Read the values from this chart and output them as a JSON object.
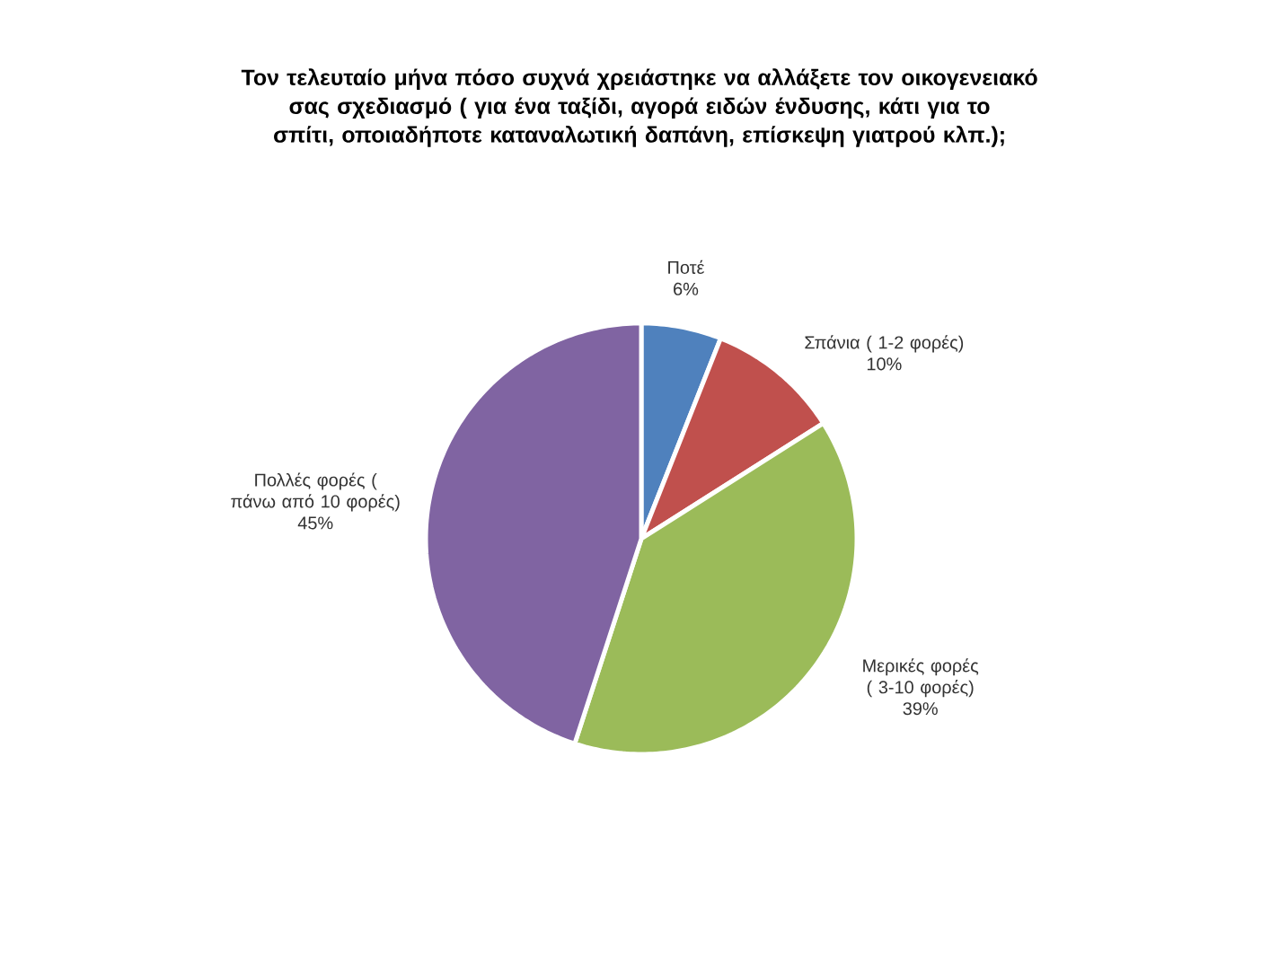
{
  "chart_data": {
    "type": "pie",
    "title": "Τον τελευταίο μήνα πόσο συχνά χρειάστηκε να αλλάξετε τον οικογενειακό σας σχεδιασμό ( για ένα ταξίδι, αγορά ειδών ένδυσης, κάτι για το σπίτι, οποιαδήποτε καταναλωτική δαπάνη, επίσκεψη γιατρού κλπ.);",
    "categories": [
      "Ποτέ",
      "Σπάνια ( 1-2 φορές)",
      "Μερικές φορές ( 3-10 φορές)",
      "Πολλές φορές ( πάνω από 10 φορές)"
    ],
    "values": [
      6,
      10,
      39,
      45
    ],
    "value_labels": [
      "6%",
      "10%",
      "39%",
      "45%"
    ],
    "colors": [
      "#4f81bd",
      "#c0504d",
      "#9bbb59",
      "#8064a2"
    ]
  }
}
